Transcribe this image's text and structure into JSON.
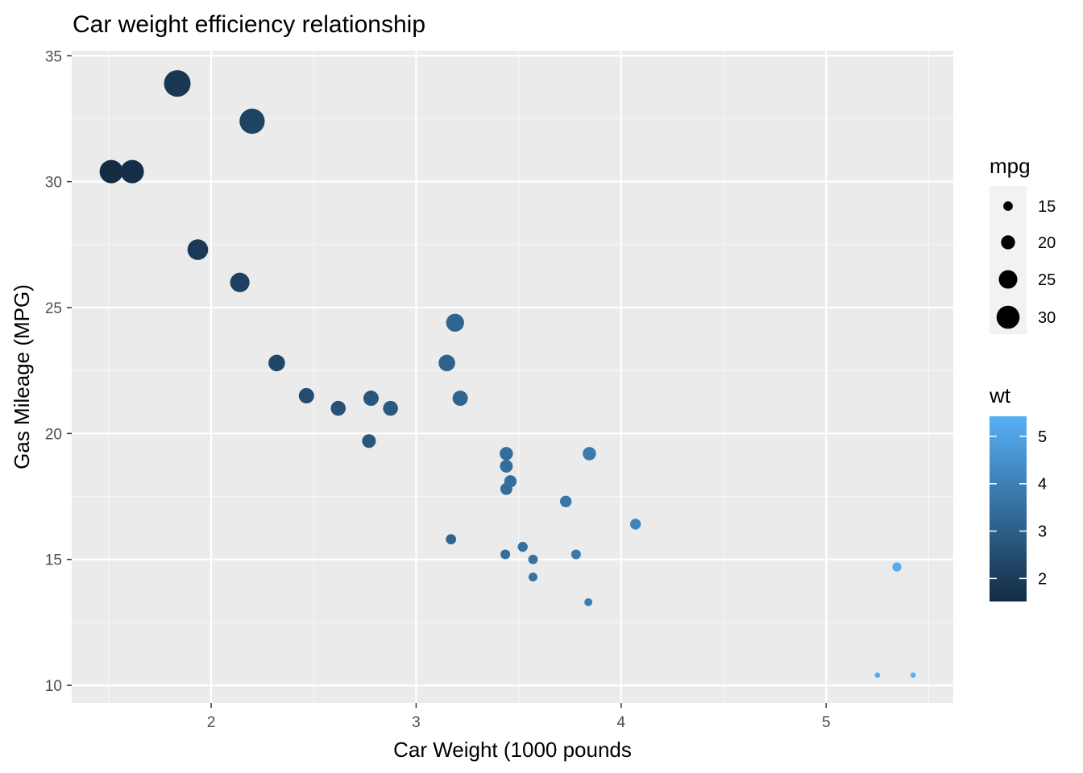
{
  "chart_data": {
    "type": "scatter",
    "title": "Car weight efficiency relationship",
    "xlabel": "Car Weight (1000 pounds",
    "ylabel": "Gas Mileage (MPG)",
    "xlim": [
      1.32,
      5.62
    ],
    "ylim": [
      9.3,
      35.2
    ],
    "x_ticks": [
      "2",
      "3",
      "4",
      "5"
    ],
    "y_ticks": [
      "10",
      "15",
      "20",
      "25",
      "30",
      "35"
    ],
    "grid": true,
    "legend_placement": "right",
    "size_legend": {
      "title": "mpg",
      "labels": [
        "15",
        "20",
        "25",
        "30"
      ]
    },
    "color_legend": {
      "title": "wt",
      "labels": [
        "2",
        "3",
        "4",
        "5"
      ],
      "low_color": "#132B43",
      "high_color": "#56B1F7",
      "range": [
        1.513,
        5.424
      ]
    },
    "points": [
      {
        "x": 2.62,
        "y": 21.0
      },
      {
        "x": 2.875,
        "y": 21.0
      },
      {
        "x": 2.32,
        "y": 22.8
      },
      {
        "x": 3.215,
        "y": 21.4
      },
      {
        "x": 3.44,
        "y": 18.7
      },
      {
        "x": 3.46,
        "y": 18.1
      },
      {
        "x": 3.57,
        "y": 14.3
      },
      {
        "x": 3.19,
        "y": 24.4
      },
      {
        "x": 3.15,
        "y": 22.8
      },
      {
        "x": 3.44,
        "y": 19.2
      },
      {
        "x": 3.44,
        "y": 17.8
      },
      {
        "x": 4.07,
        "y": 16.4
      },
      {
        "x": 3.73,
        "y": 17.3
      },
      {
        "x": 3.78,
        "y": 15.2
      },
      {
        "x": 5.25,
        "y": 10.4
      },
      {
        "x": 5.424,
        "y": 10.4
      },
      {
        "x": 5.345,
        "y": 14.7
      },
      {
        "x": 2.2,
        "y": 32.4
      },
      {
        "x": 1.615,
        "y": 30.4
      },
      {
        "x": 1.835,
        "y": 33.9
      },
      {
        "x": 2.465,
        "y": 21.5
      },
      {
        "x": 3.52,
        "y": 15.5
      },
      {
        "x": 3.435,
        "y": 15.2
      },
      {
        "x": 3.84,
        "y": 13.3
      },
      {
        "x": 3.845,
        "y": 19.2
      },
      {
        "x": 1.935,
        "y": 27.3
      },
      {
        "x": 2.14,
        "y": 26.0
      },
      {
        "x": 1.513,
        "y": 30.4
      },
      {
        "x": 3.17,
        "y": 15.8
      },
      {
        "x": 2.77,
        "y": 19.7
      },
      {
        "x": 3.57,
        "y": 15.0
      },
      {
        "x": 2.78,
        "y": 21.4
      }
    ]
  }
}
